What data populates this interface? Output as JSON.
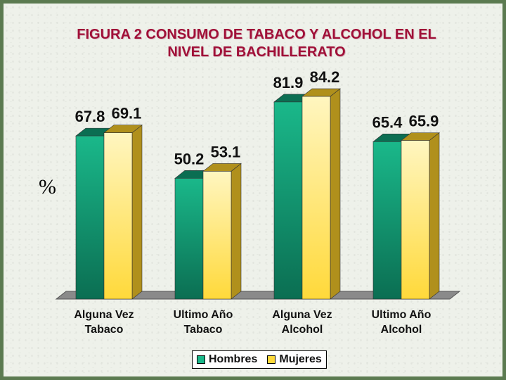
{
  "colors": {
    "hombres_front": "#1ab88a",
    "hombres_dark": "#0b6e52",
    "mujeres_front": "#fff6c0",
    "mujeres_mid": "#ffd93a",
    "mujeres_dark": "#b0901c",
    "floor": "#8a8a8a"
  },
  "chart_data": {
    "type": "bar",
    "title": "FIGURA 2 CONSUMO DE TABACO Y ALCOHOL EN EL NIVEL DE BACHILLERATO",
    "title_lines": [
      "FIGURA 2 CONSUMO DE TABACO Y ALCOHOL EN EL",
      "NIVEL DE BACHILLERATO"
    ],
    "ylabel": "%",
    "xlabel": "",
    "categories": [
      [
        "Alguna Vez",
        "Tabaco"
      ],
      [
        "Ultimo Año",
        "Tabaco"
      ],
      [
        "Alguna Vez",
        "Alcohol"
      ],
      [
        "Ultimo Año",
        "Alcohol"
      ]
    ],
    "series": [
      {
        "name": "Hombres",
        "values": [
          67.8,
          50.2,
          81.9,
          65.4
        ],
        "labels": [
          "67.8",
          "50.2",
          "81.9",
          "65.4"
        ]
      },
      {
        "name": "Mujeres",
        "values": [
          69.1,
          53.1,
          84.2,
          65.9
        ],
        "labels": [
          "69.1",
          "53.1",
          "84.2",
          "65.9"
        ]
      }
    ],
    "ylim": [
      0,
      100
    ],
    "grid": false,
    "legend_position": "bottom-center"
  }
}
